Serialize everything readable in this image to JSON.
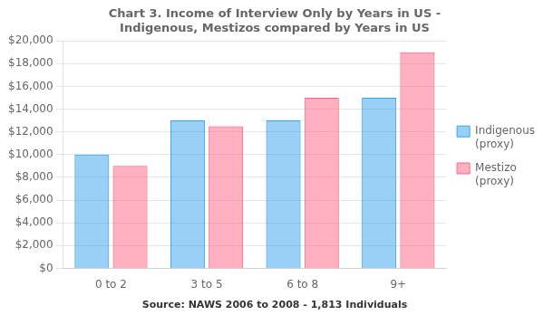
{
  "chart_data": {
    "type": "bar",
    "title": [
      "Chart 3. Income of Interview Only by Years in US -",
      "Indigenous, Mestizos compared by Years in US"
    ],
    "annotations": [
      "Source: NAWS 2006 to 2008 - 1,813 Individuals"
    ],
    "categories": [
      "0 to 2",
      "3 to 5",
      "6 to 8",
      "9+"
    ],
    "series": [
      {
        "name": "Indigenous\n(proxy)",
        "values": [
          10000,
          13000,
          13000,
          15000
        ]
      },
      {
        "name": "Mestizo\n(proxy)",
        "values": [
          9000,
          12500,
          15000,
          19000
        ]
      }
    ],
    "ylim": [
      0,
      20000
    ],
    "yticks": [
      {
        "value": 0,
        "label": "$0"
      },
      {
        "value": 2000,
        "label": "$2,000"
      },
      {
        "value": 4000,
        "label": "$4,000"
      },
      {
        "value": 6000,
        "label": "$6,000"
      },
      {
        "value": 8000,
        "label": "$8,000"
      },
      {
        "value": 10000,
        "label": "$10,000"
      },
      {
        "value": 12000,
        "label": "$12,000"
      },
      {
        "value": 14000,
        "label": "$14,000"
      },
      {
        "value": 16000,
        "label": "$16,000"
      },
      {
        "value": 18000,
        "label": "$18,000"
      },
      {
        "value": 20000,
        "label": "$20,000"
      }
    ],
    "grid": true,
    "legend": "right"
  }
}
